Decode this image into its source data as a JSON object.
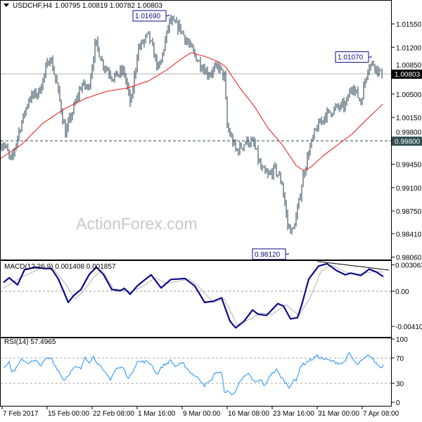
{
  "header": {
    "symbol": "USDCHF,H4",
    "ohlc": "1.00795 1.00819 1.00782 1.00803"
  },
  "watermark": "ActionForex.com",
  "colors": {
    "bars": "#1f3b4d",
    "ma": "#e8141a",
    "macd": "#0b0b8a",
    "signal": "#b4b4b4",
    "rsi": "#1e90ff",
    "level_label_bg": "#2f4f4f",
    "price_label_bg": "#000000"
  },
  "chart_data": [
    {
      "type": "line",
      "title": "USDCHF,H4",
      "x_unit": "H4 bar index",
      "xlim": [
        0,
        278
      ],
      "ylim": [
        0.9804,
        1.019
      ],
      "x_tick_labels": [
        {
          "bar": 1,
          "label": "7 Feb 2017"
        },
        {
          "bar": 33,
          "label": "15 Feb 00:00"
        },
        {
          "bar": 65,
          "label": "22 Feb 08:00"
        },
        {
          "bar": 97,
          "label": "1 Mar 16:00"
        },
        {
          "bar": 129,
          "label": "9 Mar 00:00"
        },
        {
          "bar": 161,
          "label": "16 Mar 08:00"
        },
        {
          "bar": 193,
          "label": "23 Mar 16:00"
        },
        {
          "bar": 225,
          "label": "31 Mar 00:00"
        },
        {
          "bar": 257,
          "label": "7 Apr 08:00"
        }
      ],
      "y_tick_labels": [
        "1.01550",
        "1.01200",
        "1.00850",
        "1.00500",
        "1.00150",
        "0.99800",
        "0.99450",
        "0.99100",
        "0.98750",
        "0.98410",
        "0.98060"
      ],
      "y_ticks": [
        1.0155,
        1.012,
        1.0085,
        1.005,
        1.0015,
        0.998,
        0.9945,
        0.991,
        0.9875,
        0.9841,
        0.9806
      ],
      "current_price": {
        "value": 1.00803,
        "label": "1.00803"
      },
      "level_line": {
        "value": 0.998,
        "label": "0.99800"
      },
      "annotations": [
        {
          "bar": 119.5,
          "value": 1.0169,
          "label": "1.01690"
        },
        {
          "bar": 263.5,
          "value": 1.0107,
          "label": "1.01070"
        },
        {
          "bar": 204.5,
          "value": 0.9812,
          "label": "0.98120"
        }
      ],
      "close_path": [
        [
          2.5,
          0.9975
        ],
        [
          7.5,
          0.9948
        ],
        [
          12.5,
          0.9991
        ],
        [
          20,
          1.0043
        ],
        [
          27.5,
          1.0054
        ],
        [
          35,
          1.0107
        ],
        [
          40,
          1.0064
        ],
        [
          46,
          0.9991
        ],
        [
          50,
          1.0017
        ],
        [
          57.5,
          1.0064
        ],
        [
          62.5,
          1.0059
        ],
        [
          67.5,
          1.0128
        ],
        [
          72.5,
          1.0096
        ],
        [
          80,
          1.0075
        ],
        [
          87.5,
          1.0085
        ],
        [
          92.5,
          1.0033
        ],
        [
          97.5,
          1.0117
        ],
        [
          105,
          1.0138
        ],
        [
          112.5,
          1.0085
        ],
        [
          120,
          1.0159
        ],
        [
          127.5,
          1.0149
        ],
        [
          132.5,
          1.0128
        ],
        [
          140,
          1.0101
        ],
        [
          147.5,
          1.008
        ],
        [
          155,
          1.0091
        ],
        [
          159,
          1.0075
        ],
        [
          161,
          1.0001
        ],
        [
          167.5,
          0.9964
        ],
        [
          175,
          0.998
        ],
        [
          180,
          0.9975
        ],
        [
          185,
          0.9938
        ],
        [
          190,
          0.9927
        ],
        [
          195,
          0.9938
        ],
        [
          200,
          0.9917
        ],
        [
          204,
          0.9854
        ],
        [
          207.5,
          0.9843
        ],
        [
          211,
          0.9875
        ],
        [
          215,
          0.9927
        ],
        [
          219,
          0.9964
        ],
        [
          224,
          0.9996
        ],
        [
          230,
          1.0017
        ],
        [
          237.5,
          1.0028
        ],
        [
          245,
          1.0033
        ],
        [
          250,
          1.0064
        ],
        [
          256,
          1.0038
        ],
        [
          261,
          1.0091
        ],
        [
          265,
          1.0096
        ],
        [
          270,
          1.008
        ]
      ],
      "moving_average": [
        [
          0,
          0.99537
        ],
        [
          15,
          0.99747
        ],
        [
          30,
          1.00064
        ],
        [
          45,
          1.00274
        ],
        [
          60,
          1.00433
        ],
        [
          75,
          1.00538
        ],
        [
          90,
          1.00591
        ],
        [
          105,
          1.00696
        ],
        [
          117.5,
          1.00854
        ],
        [
          127.5,
          1.01012
        ],
        [
          135,
          1.01118
        ],
        [
          145,
          1.01065
        ],
        [
          155,
          1.00981
        ],
        [
          160,
          1.00907
        ],
        [
          170,
          1.00591
        ],
        [
          180,
          1.00327
        ],
        [
          190,
          0.99991
        ],
        [
          200,
          0.99747
        ],
        [
          210,
          0.99431
        ],
        [
          215,
          0.99357
        ],
        [
          220,
          0.99399
        ],
        [
          230,
          0.99589
        ],
        [
          240,
          0.99747
        ],
        [
          250,
          0.99905
        ],
        [
          260,
          1.00116
        ],
        [
          271.5,
          1.00348
        ]
      ]
    },
    {
      "type": "line",
      "title": "MACD(12,26,9) 0.001408 0.001857",
      "value_unit": "0.001",
      "y_tick_labels": [
        {
          "value": 3.063,
          "label": "0.003063"
        },
        {
          "value": 0,
          "label": "0.00"
        },
        {
          "value": -4.104,
          "label": "-0.004104"
        }
      ],
      "macd": [
        [
          2,
          1.01
        ],
        [
          6,
          1.56
        ],
        [
          12,
          0.74
        ],
        [
          17,
          2.52
        ],
        [
          25,
          2.79
        ],
        [
          31,
          2.65
        ],
        [
          36,
          2.65
        ],
        [
          41,
          1.42
        ],
        [
          48,
          -1.31
        ],
        [
          52,
          -0.49
        ],
        [
          57,
          0.19
        ],
        [
          63,
          1.97
        ],
        [
          68,
          2.79
        ],
        [
          73,
          1.97
        ],
        [
          79,
          0.19
        ],
        [
          85,
          0.05
        ],
        [
          88,
          0.33
        ],
        [
          92,
          -0.36
        ],
        [
          97,
          0.6
        ],
        [
          101,
          1.15
        ],
        [
          107,
          1.91
        ],
        [
          114,
          0.38
        ],
        [
          121,
          1.37
        ],
        [
          126,
          1.42
        ],
        [
          131,
          1.48
        ],
        [
          138,
          0.6
        ],
        [
          145,
          -1.31
        ],
        [
          151,
          -1.18
        ],
        [
          157,
          -0.77
        ],
        [
          163,
          -3.5
        ],
        [
          167,
          -4.27
        ],
        [
          173,
          -3.5
        ],
        [
          179,
          -2.19
        ],
        [
          183,
          -2.68
        ],
        [
          189,
          -2.82
        ],
        [
          197,
          -1.45
        ],
        [
          201,
          -1.72
        ],
        [
          206,
          -3.23
        ],
        [
          211,
          -3.09
        ],
        [
          214,
          -1.59
        ],
        [
          219,
          1.42
        ],
        [
          226,
          2.93
        ],
        [
          232,
          3.2
        ],
        [
          239,
          2.38
        ],
        [
          245,
          1.91
        ],
        [
          249,
          2.11
        ],
        [
          256,
          1.83
        ],
        [
          262,
          2.57
        ],
        [
          267,
          2.24
        ],
        [
          272,
          1.7
        ]
      ],
      "signal": [
        [
          2,
          0.33
        ],
        [
          11,
          1.29
        ],
        [
          19,
          1.97
        ],
        [
          29,
          2.65
        ],
        [
          38,
          2.52
        ],
        [
          46,
          0.88
        ],
        [
          53,
          -0.9
        ],
        [
          59,
          0.05
        ],
        [
          66,
          1.56
        ],
        [
          72,
          2.52
        ],
        [
          80,
          0.33
        ],
        [
          92,
          -0.08
        ],
        [
          100,
          0.46
        ],
        [
          110,
          1.56
        ],
        [
          118,
          0.88
        ],
        [
          126,
          1.15
        ],
        [
          134,
          1.42
        ],
        [
          142,
          0.33
        ],
        [
          151,
          -1.31
        ],
        [
          159,
          -0.9
        ],
        [
          168,
          -3.91
        ],
        [
          176,
          -3.36
        ],
        [
          185,
          -2.54
        ],
        [
          193,
          -2.68
        ],
        [
          203,
          -1.59
        ],
        [
          212,
          -2.82
        ],
        [
          220,
          -0.77
        ],
        [
          228,
          2.38
        ],
        [
          235,
          3.06
        ],
        [
          245,
          2.24
        ],
        [
          254,
          1.97
        ],
        [
          264,
          2.24
        ],
        [
          272,
          2.24
        ]
      ],
      "trendline": [
        [
          225,
          3.47
        ],
        [
          276,
          2.46
        ]
      ]
    },
    {
      "type": "line",
      "title": "RSI(14) 57.4965",
      "ylim": [
        0,
        100
      ],
      "levels": [
        70,
        30
      ],
      "y_tick_labels": [
        {
          "value": 100,
          "label": "100"
        },
        {
          "value": 70,
          "label": "70"
        },
        {
          "value": 30,
          "label": "30"
        },
        {
          "value": 0,
          "label": "0"
        }
      ],
      "rsi": [
        [
          2,
          57
        ],
        [
          6,
          62
        ],
        [
          8,
          48
        ],
        [
          11,
          53
        ],
        [
          15,
          68
        ],
        [
          19,
          63
        ],
        [
          25,
          65
        ],
        [
          29,
          59
        ],
        [
          32,
          68
        ],
        [
          36,
          70
        ],
        [
          38,
          61
        ],
        [
          45,
          35
        ],
        [
          50,
          49
        ],
        [
          53,
          55
        ],
        [
          57,
          53
        ],
        [
          60,
          72
        ],
        [
          63,
          64
        ],
        [
          66,
          72
        ],
        [
          73,
          49
        ],
        [
          78,
          37
        ],
        [
          82,
          53
        ],
        [
          87,
          55
        ],
        [
          91,
          37
        ],
        [
          97,
          64
        ],
        [
          103,
          64
        ],
        [
          107,
          61
        ],
        [
          111,
          44
        ],
        [
          115,
          57
        ],
        [
          121,
          66
        ],
        [
          124,
          57
        ],
        [
          130,
          61
        ],
        [
          134,
          49
        ],
        [
          142,
          35
        ],
        [
          145,
          27
        ],
        [
          149,
          33
        ],
        [
          153,
          48
        ],
        [
          157,
          46
        ],
        [
          159,
          18
        ],
        [
          165,
          13
        ],
        [
          167,
          16
        ],
        [
          170,
          35
        ],
        [
          176,
          44
        ],
        [
          181,
          31
        ],
        [
          185,
          35
        ],
        [
          188,
          25
        ],
        [
          191,
          42
        ],
        [
          196,
          51
        ],
        [
          200,
          38
        ],
        [
          205,
          24
        ],
        [
          208,
          35
        ],
        [
          210,
          33
        ],
        [
          213,
          57
        ],
        [
          218,
          64
        ],
        [
          225,
          73
        ],
        [
          230,
          68
        ],
        [
          237,
          64
        ],
        [
          243,
          61
        ],
        [
          248,
          77
        ],
        [
          253,
          59
        ],
        [
          256,
          64
        ],
        [
          262,
          75
        ],
        [
          266,
          64
        ],
        [
          270,
          55
        ],
        [
          272,
          59
        ]
      ]
    }
  ]
}
